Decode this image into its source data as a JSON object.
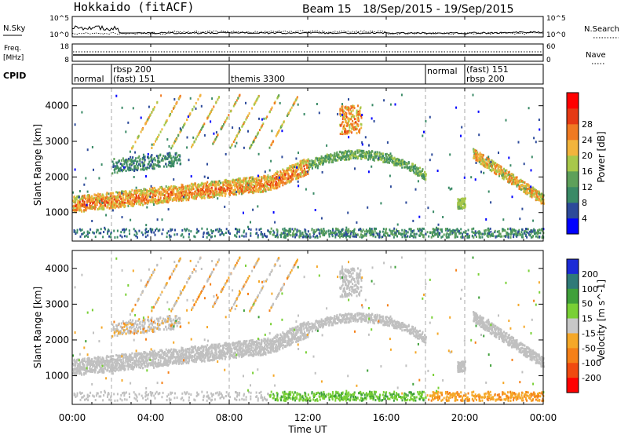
{
  "chart_data": {
    "type": "heatmap",
    "header": {
      "station": "Hokkaido (fitACF)",
      "beam": "Beam 15",
      "date_range": "18/Sep/2015 - 19/Sep/2015"
    },
    "time_axis": {
      "label": "Time UT",
      "range_hours": [
        0,
        24
      ],
      "ticks": [
        "00:00",
        "04:00",
        "08:00",
        "12:00",
        "16:00",
        "20:00",
        "00:00"
      ],
      "tick_hours": [
        0,
        4,
        8,
        12,
        16,
        20,
        24
      ]
    },
    "noise_panel": {
      "left_label": "N.Sky",
      "right_label": "N.Search",
      "left_ticks": [
        "10^5",
        "10^0"
      ],
      "right_ticks": [
        "10^5",
        "10^0"
      ]
    },
    "freq_panel": {
      "left_label_line1": "Freq.",
      "left_label_line2": "[MHz]",
      "right_label": "Nave",
      "left_ticks": [
        "18",
        "8"
      ],
      "right_ticks": [
        "60",
        "0"
      ]
    },
    "cpid_panel": {
      "label": "CPID",
      "segments": [
        {
          "start": 0.0,
          "label": "normal"
        },
        {
          "start": 2.0,
          "label": "rbsp 200"
        },
        {
          "start": 2.0,
          "label": "(fast) 151"
        },
        {
          "start": 8.0,
          "label": "themis 3300"
        },
        {
          "start": 18.0,
          "label": "normal"
        },
        {
          "start": 20.0,
          "label": "(fast) 151"
        },
        {
          "start": 20.0,
          "label": "rbsp 200"
        }
      ],
      "boundaries_hours": [
        2,
        8,
        18,
        20
      ]
    },
    "power_panel": {
      "ylabel": "Slant Range [km]",
      "ylim": [
        200,
        4500
      ],
      "yticks": [
        1000,
        2000,
        3000,
        4000
      ],
      "colorbar_label": "Power [dB]",
      "colorbar_ticks": [
        "4",
        "8",
        "12",
        "16",
        "20",
        "24",
        "28"
      ],
      "colorbar_range": [
        0,
        32
      ],
      "colors": [
        "#0000ff",
        "#2c4a9a",
        "#3a8a66",
        "#5ea05a",
        "#a8c84a",
        "#f2b43c",
        "#f07a22",
        "#e63a14",
        "#ff0000"
      ]
    },
    "velocity_panel": {
      "ylabel": "Slant Range [km]",
      "ylim": [
        200,
        4500
      ],
      "yticks": [
        1000,
        2000,
        3000,
        4000
      ],
      "colorbar_label": "Velocity [m s^-1]",
      "colorbar_ticks": [
        "200",
        "100",
        "50",
        "15",
        "-15",
        "-50",
        "-100",
        "-200"
      ],
      "colors": [
        "#1c2bd6",
        "#2f7a78",
        "#3fa03a",
        "#79d035",
        "#c8c8c8",
        "#f5a828",
        "#f58018",
        "#f04a10",
        "#ff0000"
      ],
      "ground_scatter_color": "#c0c0c0"
    }
  }
}
